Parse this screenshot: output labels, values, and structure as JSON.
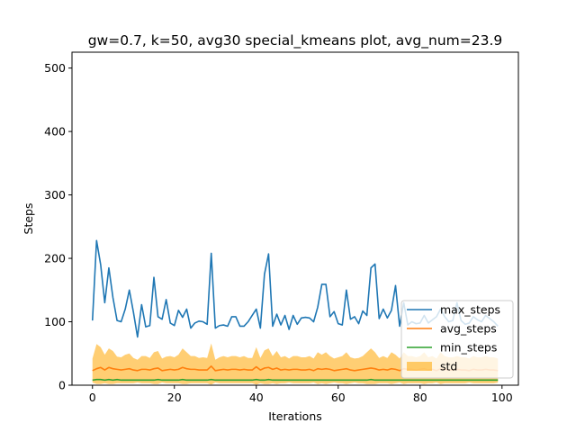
{
  "chart_data": {
    "type": "line",
    "title": "gw=0.7, k=50, avg30 special_kmeans plot, avg_num=23.9",
    "xlabel": "Iterations",
    "ylabel": "Steps",
    "xlim": [
      -5,
      104
    ],
    "ylim": [
      0,
      525
    ],
    "xticks": [
      0,
      20,
      40,
      60,
      80,
      100
    ],
    "yticks": [
      0,
      100,
      200,
      300,
      400,
      500
    ],
    "grid": false,
    "legend_position": "lower right",
    "x": [
      0,
      1,
      2,
      3,
      4,
      5,
      6,
      7,
      8,
      9,
      10,
      11,
      12,
      13,
      14,
      15,
      16,
      17,
      18,
      19,
      20,
      21,
      22,
      23,
      24,
      25,
      26,
      27,
      28,
      29,
      30,
      31,
      32,
      33,
      34,
      35,
      36,
      37,
      38,
      39,
      40,
      41,
      42,
      43,
      44,
      45,
      46,
      47,
      48,
      49,
      50,
      51,
      52,
      53,
      54,
      55,
      56,
      57,
      58,
      59,
      60,
      61,
      62,
      63,
      64,
      65,
      66,
      67,
      68,
      69,
      70,
      71,
      72,
      73,
      74,
      75,
      76,
      77,
      78,
      79,
      80,
      81,
      82,
      83,
      84,
      85,
      86,
      87,
      88,
      89,
      90,
      91,
      92,
      93,
      94,
      95,
      96,
      97,
      98,
      99
    ],
    "series": [
      {
        "name": "max_steps",
        "color": "#1f77b4",
        "values": [
          102,
          228,
          190,
          130,
          185,
          138,
          102,
          100,
          120,
          150,
          115,
          76,
          127,
          92,
          94,
          170,
          108,
          104,
          135,
          98,
          94,
          118,
          107,
          120,
          90,
          98,
          101,
          100,
          96,
          208,
          90,
          94,
          95,
          93,
          108,
          108,
          93,
          93,
          100,
          110,
          120,
          90,
          175,
          207,
          93,
          112,
          95,
          110,
          88,
          110,
          96,
          106,
          107,
          106,
          100,
          123,
          159,
          159,
          108,
          116,
          97,
          95,
          150,
          104,
          108,
          97,
          117,
          110,
          185,
          191,
          105,
          120,
          106,
          118,
          157,
          93,
          130,
          95,
          100,
          97,
          98,
          110,
          98,
          103,
          108,
          120,
          108,
          100,
          102,
          130,
          102,
          96,
          98,
          108,
          103,
          100,
          110,
          105,
          100,
          93
        ]
      },
      {
        "name": "avg_steps",
        "color": "#ff7f0e",
        "values": [
          23,
          26,
          28,
          24,
          28,
          26,
          25,
          24,
          25,
          26,
          24,
          23,
          25,
          25,
          24,
          26,
          27,
          23,
          24,
          25,
          24,
          25,
          28,
          26,
          25,
          25,
          24,
          24,
          24,
          30,
          23,
          24,
          25,
          24,
          25,
          25,
          24,
          25,
          24,
          24,
          29,
          24,
          27,
          28,
          25,
          27,
          24,
          25,
          24,
          25,
          25,
          24,
          24,
          25,
          23,
          26,
          25,
          26,
          25,
          23,
          24,
          25,
          26,
          24,
          23,
          24,
          25,
          26,
          27,
          26,
          24,
          25,
          24,
          26,
          25,
          23,
          26,
          25,
          25,
          24,
          25,
          26,
          24,
          25,
          23,
          26,
          25,
          24,
          24,
          25,
          24,
          24,
          23,
          25,
          24,
          24,
          25,
          24,
          24,
          23
        ]
      },
      {
        "name": "min_steps",
        "color": "#2ca02c",
        "values": [
          8,
          9,
          9,
          8,
          9,
          8,
          9,
          8,
          8,
          8,
          8,
          8,
          8,
          8,
          8,
          8,
          9,
          8,
          8,
          8,
          8,
          8,
          9,
          8,
          8,
          8,
          8,
          8,
          8,
          9,
          8,
          8,
          8,
          8,
          8,
          8,
          8,
          8,
          8,
          8,
          9,
          8,
          8,
          9,
          8,
          8,
          8,
          8,
          8,
          8,
          8,
          8,
          8,
          8,
          8,
          8,
          8,
          8,
          8,
          8,
          8,
          8,
          8,
          8,
          8,
          8,
          8,
          8,
          9,
          8,
          8,
          8,
          8,
          8,
          8,
          8,
          8,
          8,
          8,
          8,
          8,
          8,
          8,
          8,
          8,
          8,
          8,
          8,
          8,
          8,
          8,
          8,
          8,
          8,
          8,
          8,
          8,
          8,
          8,
          8
        ]
      },
      {
        "name": "std",
        "color": "#ffa500",
        "upper": [
          42,
          65,
          60,
          48,
          58,
          54,
          45,
          44,
          48,
          50,
          43,
          40,
          46,
          46,
          43,
          52,
          54,
          42,
          45,
          46,
          44,
          48,
          58,
          52,
          46,
          46,
          43,
          44,
          43,
          66,
          40,
          44,
          46,
          44,
          46,
          46,
          44,
          46,
          43,
          43,
          60,
          43,
          55,
          58,
          46,
          54,
          44,
          46,
          42,
          46,
          46,
          44,
          44,
          46,
          42,
          52,
          48,
          52,
          46,
          42,
          44,
          46,
          52,
          44,
          42,
          43,
          46,
          52,
          58,
          52,
          43,
          46,
          43,
          52,
          48,
          42,
          52,
          46,
          46,
          44,
          46,
          52,
          44,
          46,
          42,
          52,
          46,
          44,
          44,
          46,
          44,
          44,
          42,
          46,
          44,
          44,
          46,
          44,
          44,
          42
        ],
        "lower": [
          4,
          2,
          2,
          3,
          2,
          2,
          3,
          3,
          3,
          3,
          3,
          4,
          3,
          3,
          3,
          2,
          2,
          4,
          3,
          3,
          3,
          3,
          2,
          2,
          3,
          3,
          3,
          3,
          3,
          1,
          4,
          3,
          3,
          3,
          3,
          3,
          3,
          3,
          3,
          3,
          1,
          3,
          2,
          2,
          3,
          2,
          3,
          3,
          4,
          3,
          3,
          3,
          3,
          3,
          4,
          2,
          3,
          2,
          3,
          4,
          3,
          3,
          2,
          3,
          4,
          3,
          3,
          2,
          2,
          2,
          3,
          3,
          3,
          2,
          3,
          4,
          2,
          3,
          3,
          3,
          3,
          2,
          3,
          3,
          4,
          2,
          3,
          3,
          3,
          3,
          3,
          3,
          4,
          3,
          3,
          3,
          3,
          3,
          3,
          4
        ]
      }
    ]
  }
}
